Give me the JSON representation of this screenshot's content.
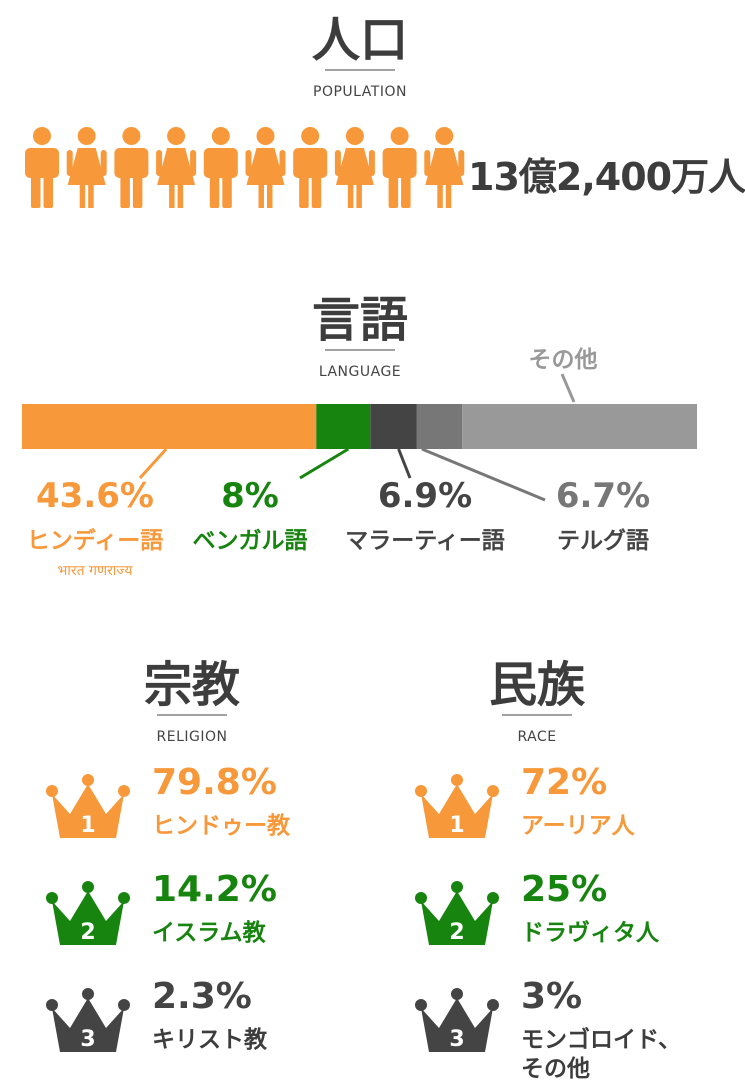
{
  "population": {
    "title": "人口",
    "subtitle": "POPULATION",
    "value": "13億2,400万人"
  },
  "language": {
    "title": "言語",
    "subtitle": "LANGUAGE",
    "items": [
      {
        "label": "ヒンディー語",
        "value": 43.6,
        "value_label": "43.6%",
        "color": "#f7983a",
        "note": "भारत गणराज्य"
      },
      {
        "label": "ベンガル語",
        "value": 8,
        "value_label": "8%",
        "color": "#17840f"
      },
      {
        "label": "マラーティー語",
        "value": 6.9,
        "value_label": "6.9%",
        "color": "#444444"
      },
      {
        "label": "テルグ語",
        "value": 6.7,
        "value_label": "6.7%",
        "color": "#777777"
      },
      {
        "label": "その他",
        "value": 34.8,
        "color": "#999999"
      }
    ]
  },
  "religion": {
    "title": "宗教",
    "subtitle": "RELIGION",
    "items": [
      {
        "rank": "1",
        "value": "79.8%",
        "label": "ヒンドゥー教",
        "color": "#f7983a"
      },
      {
        "rank": "2",
        "value": "14.2%",
        "label": "イスラム教",
        "color": "#17840f"
      },
      {
        "rank": "3",
        "value": "2.3%",
        "label": "キリスト教",
        "color": "#444444"
      }
    ]
  },
  "race": {
    "title": "民族",
    "subtitle": "RACE",
    "items": [
      {
        "rank": "1",
        "value": "72%",
        "label": "アーリア人",
        "color": "#f7983a"
      },
      {
        "rank": "2",
        "value": "25%",
        "label": "ドラヴィタ人",
        "color": "#17840f"
      },
      {
        "rank": "3",
        "value": "3%",
        "label": "モンゴロイド、その他",
        "color": "#444444"
      }
    ]
  }
}
